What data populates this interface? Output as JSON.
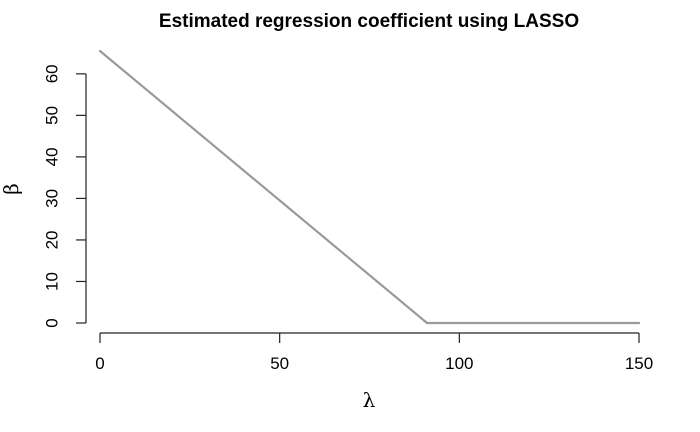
{
  "chart_data": {
    "type": "line",
    "title": "Estimated regression coefficient using LASSO",
    "xlabel": "λ",
    "ylabel": "β",
    "xlim": [
      0,
      150
    ],
    "ylim": [
      0,
      65.5
    ],
    "xticks": [
      0,
      50,
      100,
      150
    ],
    "yticks": [
      0,
      10,
      20,
      30,
      40,
      50,
      60
    ],
    "series": [
      {
        "color": "#9a9a9a",
        "x": [
          0,
          91,
          150
        ],
        "y": [
          65.5,
          0,
          0
        ]
      }
    ],
    "grid": false,
    "legend": "none"
  }
}
